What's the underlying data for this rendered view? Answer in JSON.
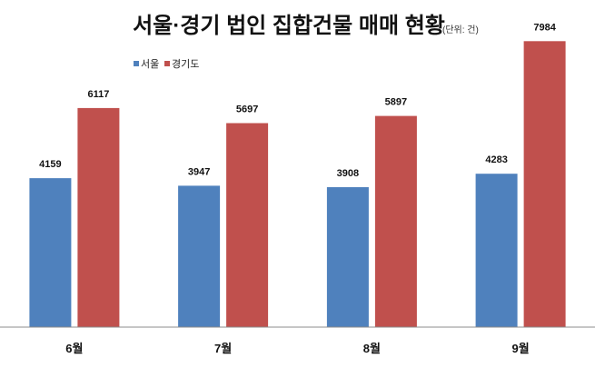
{
  "chart_data": {
    "type": "bar",
    "title": "서울·경기 법인 집합건물 매매 현황",
    "unit_note": "(단위: 건)",
    "categories": [
      "6월",
      "7월",
      "8월",
      "9월"
    ],
    "series": [
      {
        "name": "서울",
        "color": "#4f81bd",
        "values": [
          4159,
          3947,
          3908,
          4283
        ]
      },
      {
        "name": "경기도",
        "color": "#c0504d",
        "values": [
          6117,
          5697,
          5897,
          7984
        ]
      }
    ],
    "ylim": [
      0,
      8500
    ],
    "grid": false,
    "legend_position": "top-left",
    "data_labels": true
  }
}
